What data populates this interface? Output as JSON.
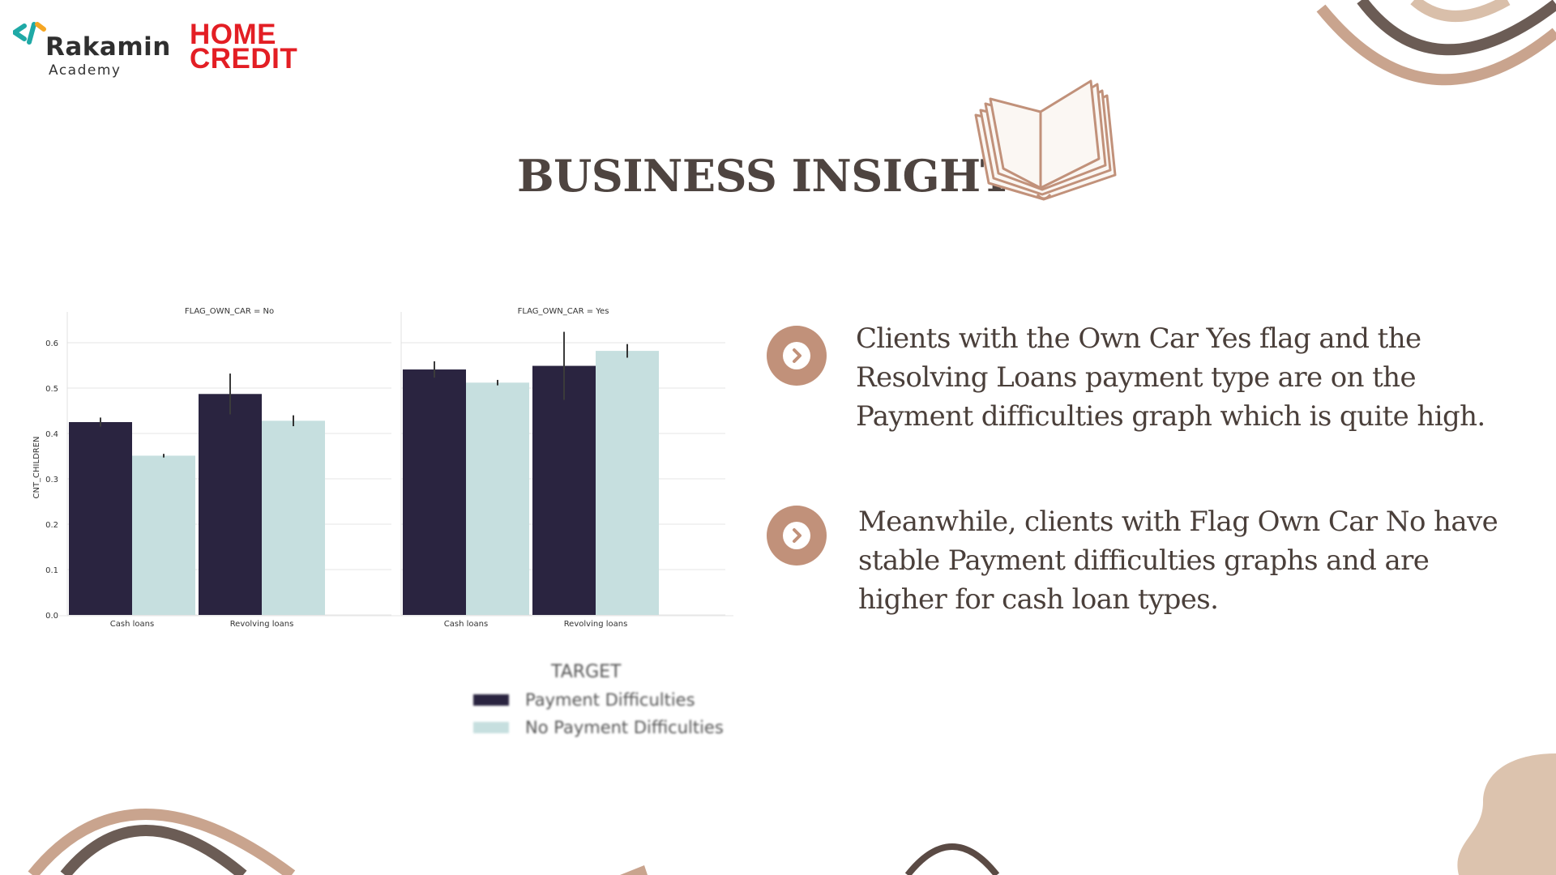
{
  "logo": {
    "rakamin_name": "Rakamin",
    "rakamin_sub": "Academy",
    "hc_line1": "HOME",
    "hc_line2": "CREDIT"
  },
  "title": "BUSINESS INSIGHT",
  "colors": {
    "accent": "#c1917a",
    "title": "#4e4440",
    "payment_difficulties": "#2a2440",
    "no_payment_difficulties": "#c6dfdf",
    "deco_dark": "#6b5c55",
    "deco_tan": "#c9a48e",
    "hc_red": "#e31e24"
  },
  "icons": {
    "insight": "chevron-right-circle-icon",
    "book": "open-book-icon"
  },
  "chart_data": {
    "type": "bar",
    "ylabel": "CNT_CHILDREN",
    "ylim": [
      0,
      0.65
    ],
    "yticks": [
      "0.0",
      "0.1",
      "0.2",
      "0.3",
      "0.4",
      "0.5",
      "0.6"
    ],
    "categories": [
      "Cash loans",
      "Revolving loans"
    ],
    "grid": true,
    "legend": {
      "title": "TARGET",
      "placement": "bottom-right",
      "entries": [
        "Payment Difficulties",
        "No Payment Difficulties"
      ]
    },
    "panels": [
      {
        "title": "FLAG_OWN_CAR = No",
        "series": [
          {
            "name": "Payment Difficulties",
            "values": [
              0.425,
              0.487
            ],
            "err": [
              0.01,
              0.045
            ]
          },
          {
            "name": "No Payment Difficulties",
            "values": [
              0.351,
              0.428
            ],
            "err": [
              0.004,
              0.012
            ]
          }
        ]
      },
      {
        "title": "FLAG_OWN_CAR = Yes",
        "series": [
          {
            "name": "Payment Difficulties",
            "values": [
              0.541,
              0.549
            ],
            "err": [
              0.018,
              0.075
            ]
          },
          {
            "name": "No Payment Difficulties",
            "values": [
              0.512,
              0.582
            ],
            "err": [
              0.006,
              0.015
            ]
          }
        ]
      }
    ]
  },
  "insights": [
    {
      "text": "Clients with the Own Car Yes flag and the Resolving Loans payment type are on the Payment difficulties graph which is quite high."
    },
    {
      "text": "Meanwhile, clients with Flag Own Car No have stable Payment difficulties graphs and are higher for cash loan types."
    }
  ]
}
